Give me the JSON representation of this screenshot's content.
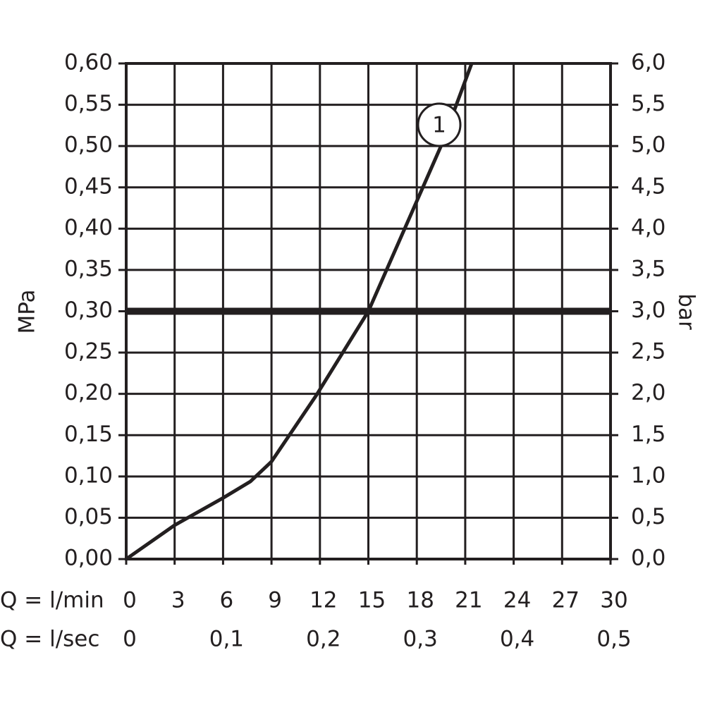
{
  "chart_data": {
    "type": "line",
    "y_label": "MPa",
    "y2_label": "bar",
    "x_label": "Q = l/min",
    "x2_label": "Q = l/sec",
    "x": [
      0,
      3,
      6,
      7.7,
      9,
      11.8,
      15,
      17.7,
      19.5,
      21.4
    ],
    "series": [
      {
        "name": "1",
        "color": "#231f20",
        "values": [
          0,
          0.041,
          0.074,
          0.094,
          0.118,
          0.199,
          0.3,
          0.42,
          0.5,
          0.6
        ]
      }
    ],
    "xlim": [
      0,
      30
    ],
    "xticks": [
      0,
      3,
      6,
      9,
      12,
      15,
      18,
      21,
      24,
      27,
      30
    ],
    "x2lim": [
      0,
      0.5
    ],
    "x2ticks": [
      0,
      {
        "value": 0.1,
        "label": "0,1"
      },
      {
        "value": 0.2,
        "label": "0,2"
      },
      {
        "value": 0.3,
        "label": "0,3"
      },
      {
        "value": 0.4,
        "label": "0,4"
      },
      {
        "value": 0.5,
        "label": "0,5"
      }
    ],
    "ylim": [
      0,
      0.6
    ],
    "yticks": [
      {
        "value": 0,
        "label": "0,00"
      },
      {
        "value": 0.05,
        "label": "0,05"
      },
      {
        "value": 0.1,
        "label": "0,10"
      },
      {
        "value": 0.15,
        "label": "0,15"
      },
      {
        "value": 0.2,
        "label": "0,20"
      },
      {
        "value": 0.25,
        "label": "0,25"
      },
      {
        "value": 0.3,
        "label": "0,30"
      },
      {
        "value": 0.35,
        "label": "0,35"
      },
      {
        "value": 0.4,
        "label": "0,40"
      },
      {
        "value": 0.45,
        "label": "0,45"
      },
      {
        "value": 0.5,
        "label": "0,50"
      },
      {
        "value": 0.55,
        "label": "0,55"
      },
      {
        "value": 0.6,
        "label": "0,60"
      }
    ],
    "y2lim": [
      0,
      6
    ],
    "y2ticks": [
      {
        "value": 0,
        "label": "0,0"
      },
      {
        "value": 0.5,
        "label": "0,5"
      },
      {
        "value": 1,
        "label": "1,0"
      },
      {
        "value": 1.5,
        "label": "1,5"
      },
      {
        "value": 2,
        "label": "2,0"
      },
      {
        "value": 2.5,
        "label": "2,5"
      },
      {
        "value": 3,
        "label": "3,0"
      },
      {
        "value": 3.5,
        "label": "3,5"
      },
      {
        "value": 4,
        "label": "4,0"
      },
      {
        "value": 4.5,
        "label": "4,5"
      },
      {
        "value": 5,
        "label": "5,0"
      },
      {
        "value": 5.5,
        "label": "5,5"
      },
      {
        "value": 6,
        "label": "6,0"
      }
    ],
    "reference": {
      "y": 0.3,
      "x": 15
    },
    "grid": true
  }
}
